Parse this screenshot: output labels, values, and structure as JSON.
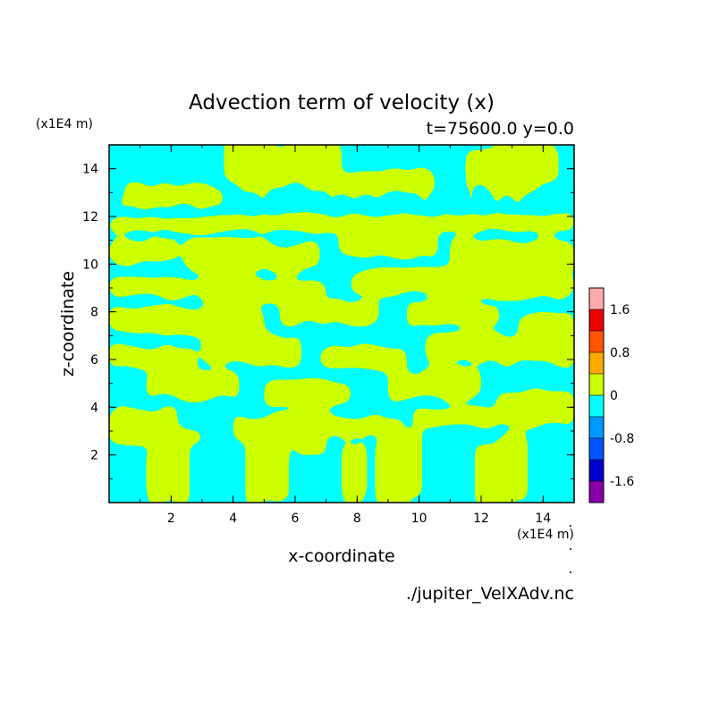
{
  "chart_data": {
    "type": "heatmap",
    "title": "Advection term of velocity (x)",
    "subtitle": "t=75600.0 y=0.0",
    "xlabel": "x-coordinate",
    "ylabel": "z-coordinate",
    "x_unit": "(x1E4 m)",
    "y_unit": "(x1E4 m)",
    "source_file": "./jupiter_VelXAdv.nc",
    "xlim": [
      0,
      15
    ],
    "ylim": [
      0,
      15
    ],
    "x_ticks": [
      2,
      4,
      6,
      8,
      10,
      12,
      14
    ],
    "y_ticks": [
      2,
      4,
      6,
      8,
      10,
      12,
      14
    ],
    "dominant_colors": {
      "negative": "#00ffff",
      "positive": "#ccff00"
    },
    "colorbar": {
      "levels": [
        {
          "from": -2.0,
          "to": -1.6,
          "color": "#8800aa"
        },
        {
          "from": -1.6,
          "to": -1.2,
          "color": "#0000cc"
        },
        {
          "from": -1.2,
          "to": -0.8,
          "color": "#0055ff"
        },
        {
          "from": -0.8,
          "to": -0.4,
          "color": "#0099ff"
        },
        {
          "from": -0.4,
          "to": 0.0,
          "color": "#00ffff"
        },
        {
          "from": 0.0,
          "to": 0.4,
          "color": "#ccff00"
        },
        {
          "from": 0.4,
          "to": 0.8,
          "color": "#ffaa00"
        },
        {
          "from": 0.8,
          "to": 1.2,
          "color": "#ff5500"
        },
        {
          "from": 1.2,
          "to": 1.6,
          "color": "#ee0000"
        },
        {
          "from": 1.6,
          "to": 2.0,
          "color": "#ffaaaa"
        }
      ],
      "tick_labels": [
        {
          "value": 1.6,
          "label": "1.6"
        },
        {
          "value": 0.8,
          "label": "0.8"
        },
        {
          "value": 0.0,
          "label": "0"
        },
        {
          "value": -0.8,
          "label": "-0.8"
        },
        {
          "value": -1.6,
          "label": "-1.6"
        }
      ]
    }
  }
}
